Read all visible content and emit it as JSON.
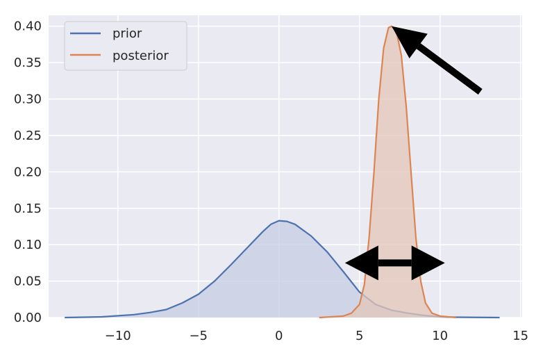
{
  "chart_data": {
    "type": "area",
    "title": "",
    "xlabel": "",
    "ylabel": "",
    "xlim": [
      -14.3,
      15.1
    ],
    "ylim": [
      0,
      0.415
    ],
    "x_ticks": [
      -10,
      -5,
      0,
      5,
      10,
      15
    ],
    "x_tick_labels": [
      "−10",
      "−5",
      "0",
      "5",
      "10",
      "15"
    ],
    "y_ticks": [
      0.0,
      0.05,
      0.1,
      0.15,
      0.2,
      0.25,
      0.3,
      0.35,
      0.4
    ],
    "y_tick_labels": [
      "0.00",
      "0.05",
      "0.10",
      "0.15",
      "0.20",
      "0.25",
      "0.30",
      "0.35",
      "0.40"
    ],
    "grid": true,
    "legend_position": "top-left",
    "background": "#eaeaf2",
    "series": [
      {
        "name": "prior",
        "color": "#4c72b0",
        "fill": "#c6cde3",
        "x": [
          -13.3,
          -11,
          -9,
          -8,
          -7,
          -6,
          -5,
          -4,
          -3,
          -2,
          -1,
          -0.5,
          0,
          0.5,
          1,
          2,
          3,
          4,
          5,
          6,
          7,
          8,
          9,
          10,
          11,
          13.7
        ],
        "y": [
          0.0,
          0.001,
          0.004,
          0.007,
          0.011,
          0.02,
          0.032,
          0.05,
          0.072,
          0.095,
          0.118,
          0.128,
          0.133,
          0.132,
          0.128,
          0.112,
          0.09,
          0.063,
          0.035,
          0.018,
          0.01,
          0.006,
          0.003,
          0.001,
          0.0005,
          0.0
        ]
      },
      {
        "name": "posterior",
        "color": "#dd8452",
        "fill": "#e3c5b8",
        "x": [
          2.5,
          4,
          4.5,
          5,
          5.3,
          5.6,
          5.9,
          6.2,
          6.5,
          6.8,
          7.0,
          7.3,
          7.6,
          7.9,
          8.2,
          8.5,
          8.8,
          9.1,
          9.5,
          10,
          11
        ],
        "y": [
          0.0,
          0.002,
          0.006,
          0.018,
          0.045,
          0.11,
          0.2,
          0.3,
          0.37,
          0.398,
          0.4,
          0.392,
          0.36,
          0.29,
          0.2,
          0.11,
          0.05,
          0.02,
          0.006,
          0.002,
          0.0
        ]
      }
    ],
    "annotations": [
      {
        "type": "arrow",
        "direction": "pointing-to-peak",
        "from": [
          12.5,
          0.31
        ],
        "to": [
          7.0,
          0.4
        ],
        "color": "#000000"
      },
      {
        "type": "double-arrow",
        "from": [
          4.1,
          0.075
        ],
        "to": [
          10.3,
          0.075
        ],
        "color": "#000000"
      }
    ]
  }
}
